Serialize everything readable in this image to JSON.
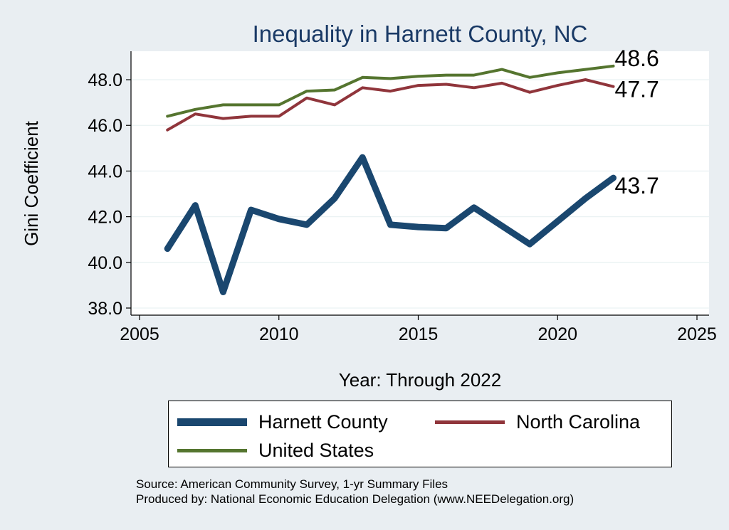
{
  "chart_data": {
    "type": "line",
    "title": "Inequality in Harnett County, NC",
    "xlabel": "Year: Through 2022",
    "ylabel": "Gini Coefficient",
    "xlim": [
      2004.7,
      2025.5
    ],
    "ylim": [
      37.6,
      49.1
    ],
    "xticks": [
      2005,
      2010,
      2015,
      2020,
      2025
    ],
    "xtick_labels": [
      "2005",
      "2010",
      "2015",
      "2020",
      "2025"
    ],
    "yticks": [
      38,
      40,
      42,
      44,
      46,
      48
    ],
    "ytick_labels": [
      "38.0",
      "40.0",
      "42.0",
      "44.0",
      "46.0",
      "48.0"
    ],
    "grid": true,
    "x": [
      2006,
      2007,
      2008,
      2009,
      2010,
      2011,
      2012,
      2013,
      2014,
      2015,
      2016,
      2017,
      2018,
      2019,
      2020,
      2021,
      2022
    ],
    "series": [
      {
        "name": "Harnett County",
        "color": "#1a476f",
        "values": [
          40.6,
          42.5,
          38.7,
          42.3,
          41.9,
          41.65,
          42.8,
          44.6,
          41.65,
          41.55,
          41.5,
          42.4,
          41.6,
          40.8,
          41.8,
          42.8,
          43.7
        ],
        "end_label": "43.7"
      },
      {
        "name": "North Carolina",
        "color": "#90353b",
        "values": [
          45.8,
          46.5,
          46.3,
          46.4,
          46.4,
          47.2,
          46.9,
          47.65,
          47.5,
          47.75,
          47.8,
          47.65,
          47.85,
          47.45,
          47.75,
          48.0,
          47.7
        ],
        "end_label": "47.7"
      },
      {
        "name": "United States",
        "color": "#55752f",
        "values": [
          46.4,
          46.7,
          46.9,
          46.9,
          46.9,
          47.5,
          47.55,
          48.1,
          48.05,
          48.15,
          48.2,
          48.2,
          48.45,
          48.1,
          48.3,
          48.45,
          48.6
        ],
        "end_label": "48.6"
      }
    ],
    "legend_position": "bottom"
  },
  "legend": {
    "items": [
      {
        "label": "Harnett County",
        "color": "#1a476f"
      },
      {
        "label": "North Carolina",
        "color": "#90353b"
      },
      {
        "label": "United States",
        "color": "#55752f"
      }
    ]
  },
  "source": {
    "line1": "Source: American Community Survey, 1-yr Summary Files",
    "line2": "Produced by: National Economic Education Delegation (www.NEEDelegation.org)"
  }
}
